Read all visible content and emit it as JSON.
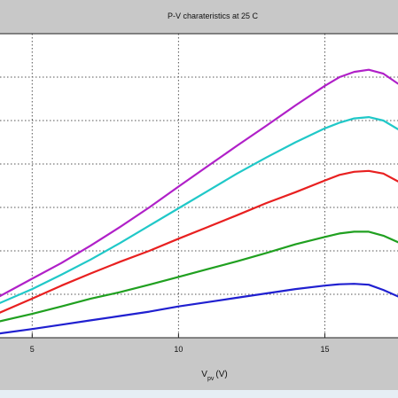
{
  "chart_data": {
    "type": "line",
    "title": "P-V charateristics at 25 C",
    "xlabel_main": "V",
    "xlabel_sub": "pv",
    "xlabel_unit": "(V)",
    "xlim": [
      3.9,
      17.5
    ],
    "ylim": [
      0,
      7
    ],
    "x_ticks": [
      5,
      10,
      15
    ],
    "x_tick_labels": [
      "5",
      "10",
      "15"
    ],
    "y_grid": [
      1,
      2,
      3,
      4,
      5,
      6
    ],
    "grid": true,
    "series": [
      {
        "color": "#b020c8",
        "x": [
          3.9,
          5,
          6,
          7,
          8,
          9,
          10,
          11,
          12,
          13,
          14,
          15,
          15.5,
          16,
          16.5,
          17,
          17.5
        ],
        "y": [
          0.96,
          1.36,
          1.72,
          2.12,
          2.55,
          3.0,
          3.48,
          3.95,
          4.42,
          4.88,
          5.35,
          5.8,
          6.0,
          6.12,
          6.17,
          6.08,
          5.85
        ]
      },
      {
        "color": "#20c8c8",
        "x": [
          3.9,
          5,
          6,
          7,
          8,
          9,
          10,
          11,
          12,
          13,
          14,
          15,
          15.5,
          16,
          16.5,
          17,
          17.5
        ],
        "y": [
          0.8,
          1.12,
          1.45,
          1.8,
          2.18,
          2.58,
          2.98,
          3.38,
          3.78,
          4.15,
          4.5,
          4.82,
          4.95,
          5.05,
          5.08,
          5.0,
          4.8
        ]
      },
      {
        "color": "#e82020",
        "x": [
          3.9,
          5,
          6,
          7,
          8,
          9,
          10,
          11,
          12,
          13,
          14,
          15,
          15.5,
          16,
          16.5,
          17,
          17.5
        ],
        "y": [
          0.58,
          0.9,
          1.2,
          1.48,
          1.75,
          2.0,
          2.28,
          2.55,
          2.82,
          3.1,
          3.35,
          3.62,
          3.75,
          3.82,
          3.84,
          3.78,
          3.6
        ]
      },
      {
        "color": "#20a020",
        "x": [
          3.9,
          5,
          6,
          7,
          8,
          9,
          10,
          11,
          12,
          13,
          14,
          15,
          15.5,
          16,
          16.5,
          17,
          17.5
        ],
        "y": [
          0.38,
          0.55,
          0.72,
          0.9,
          1.05,
          1.22,
          1.4,
          1.58,
          1.76,
          1.95,
          2.15,
          2.32,
          2.4,
          2.44,
          2.44,
          2.35,
          2.2
        ]
      },
      {
        "color": "#2020d0",
        "x": [
          3.9,
          5,
          6,
          7,
          8,
          9,
          10,
          11,
          12,
          13,
          14,
          15,
          15.5,
          16,
          16.5,
          17,
          17.5
        ],
        "y": [
          0.1,
          0.2,
          0.3,
          0.4,
          0.5,
          0.6,
          0.72,
          0.82,
          0.92,
          1.02,
          1.12,
          1.2,
          1.23,
          1.24,
          1.22,
          1.1,
          0.95
        ]
      }
    ]
  }
}
